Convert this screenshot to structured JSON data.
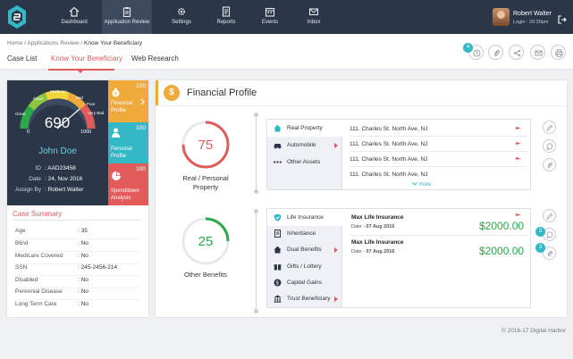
{
  "nav": {
    "items": [
      {
        "label": "Dashboard",
        "icon": "home-icon"
      },
      {
        "label": "Application Review",
        "icon": "clipboard-icon"
      },
      {
        "label": "Settings",
        "icon": "gear-icon"
      },
      {
        "label": "Reports",
        "icon": "report-icon"
      },
      {
        "label": "Events",
        "icon": "calendar-icon"
      },
      {
        "label": "Inbox",
        "icon": "mail-icon"
      }
    ],
    "user_name": "Robert Walter",
    "user_time": "Login : 20:30pm"
  },
  "breadcrumb": {
    "home": "Home",
    "sep": "/",
    "level1": "Applications Review",
    "current": "Know Your Beneficiary"
  },
  "tabs": [
    "Case List",
    "Know Your Beneficiary",
    "Web Research"
  ],
  "toolbar": {
    "badge": "4"
  },
  "profile": {
    "score": "690",
    "gauge_min": "0",
    "gauge_max": "1000",
    "gauge_labels": [
      "Moderate",
      "Good",
      "Great",
      "Bad",
      "Very Bad",
      "Poor"
    ],
    "name": "John Doe",
    "id_label": "ID",
    "id_value": ": AAD23458",
    "date_label": "Date",
    "date_value": ": 24, Nov 2016",
    "assign_label": "Assign By",
    "assign_value": ": Robert Walter"
  },
  "side_tiles": [
    {
      "num": "100",
      "label1": "Financial",
      "label2": "Profile",
      "color": "#f0a93b"
    },
    {
      "num": "100",
      "label1": "Personal",
      "label2": "Profile",
      "color": "#33b8c6"
    },
    {
      "num": "100",
      "label1": "Spenddown",
      "label2": "Analysis",
      "color": "#e25a5a"
    }
  ],
  "case_summary": {
    "title": "Case Summary",
    "rows": [
      {
        "label": "Age",
        "value": ": 35"
      },
      {
        "label": "Blind",
        "value": ": No"
      },
      {
        "label": "Medicare Covered",
        "value": ": No"
      },
      {
        "label": "SSN",
        "value": ": 245-2456-214"
      },
      {
        "label": "Disabled",
        "value": ": No"
      },
      {
        "label": "Perennial Disease",
        "value": ": No"
      },
      {
        "label": "Long Term Care",
        "value": ": No"
      }
    ]
  },
  "financial": {
    "title": "Financial Profile",
    "property_score": "75",
    "property_fraction": 0.75,
    "property_label1": "Real / Personal",
    "property_label2": "Property",
    "benefits_score": "25",
    "benefits_fraction": 0.25,
    "benefits_label": "Other Benefits",
    "property_cats": [
      "Real Property",
      "Automobile",
      "Other Assets"
    ],
    "addresses": [
      "111. Charles St. North Ave, NJ",
      "111. Charles St. North Ave, NJ",
      "111. Charles St. North Ave, NJ",
      "111. Charles St. North Ave, NJ"
    ],
    "more": "more",
    "benefit_cats": [
      "Life Insurance",
      "Inheritance",
      "Dual Benefits",
      "Gifts / Lottery",
      "Capital Gains",
      "Trust Beneficiary"
    ],
    "policies": [
      {
        "title": "Max Life Insurance",
        "date_label": "Date",
        "date": "07 Aug 2016",
        "amount": "$2000.00"
      },
      {
        "title": "Max Life Insurance",
        "date_label": "Date",
        "date": "07 Aug 2016",
        "amount": "$2000.00"
      }
    ],
    "action_badges": [
      "3",
      "3"
    ]
  },
  "footer": "© 2016-17  Digital Harbor",
  "colors": {
    "accent_red": "#e25a5a",
    "accent_teal": "#33b8c6",
    "accent_orange": "#f0a93b",
    "green": "#2aa84a",
    "nav_bg": "#2b3749"
  }
}
